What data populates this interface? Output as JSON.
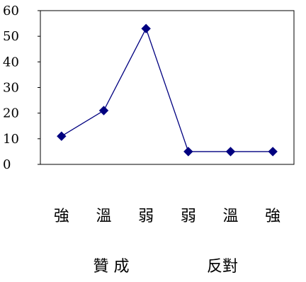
{
  "chart_data": {
    "type": "line",
    "categories": [
      "強",
      "溫",
      "弱",
      "弱",
      "溫",
      "強"
    ],
    "values": [
      11,
      21,
      53,
      5,
      5,
      5
    ],
    "ylim": [
      0,
      60
    ],
    "yticks": [
      0,
      10,
      20,
      30,
      40,
      50,
      60
    ],
    "grid": false,
    "legend": "none",
    "group_labels": [
      "贊 成",
      "反對"
    ],
    "colors": {
      "line": "#000080",
      "marker": "#000080",
      "axis": "#000000"
    },
    "marker": "diamond"
  }
}
